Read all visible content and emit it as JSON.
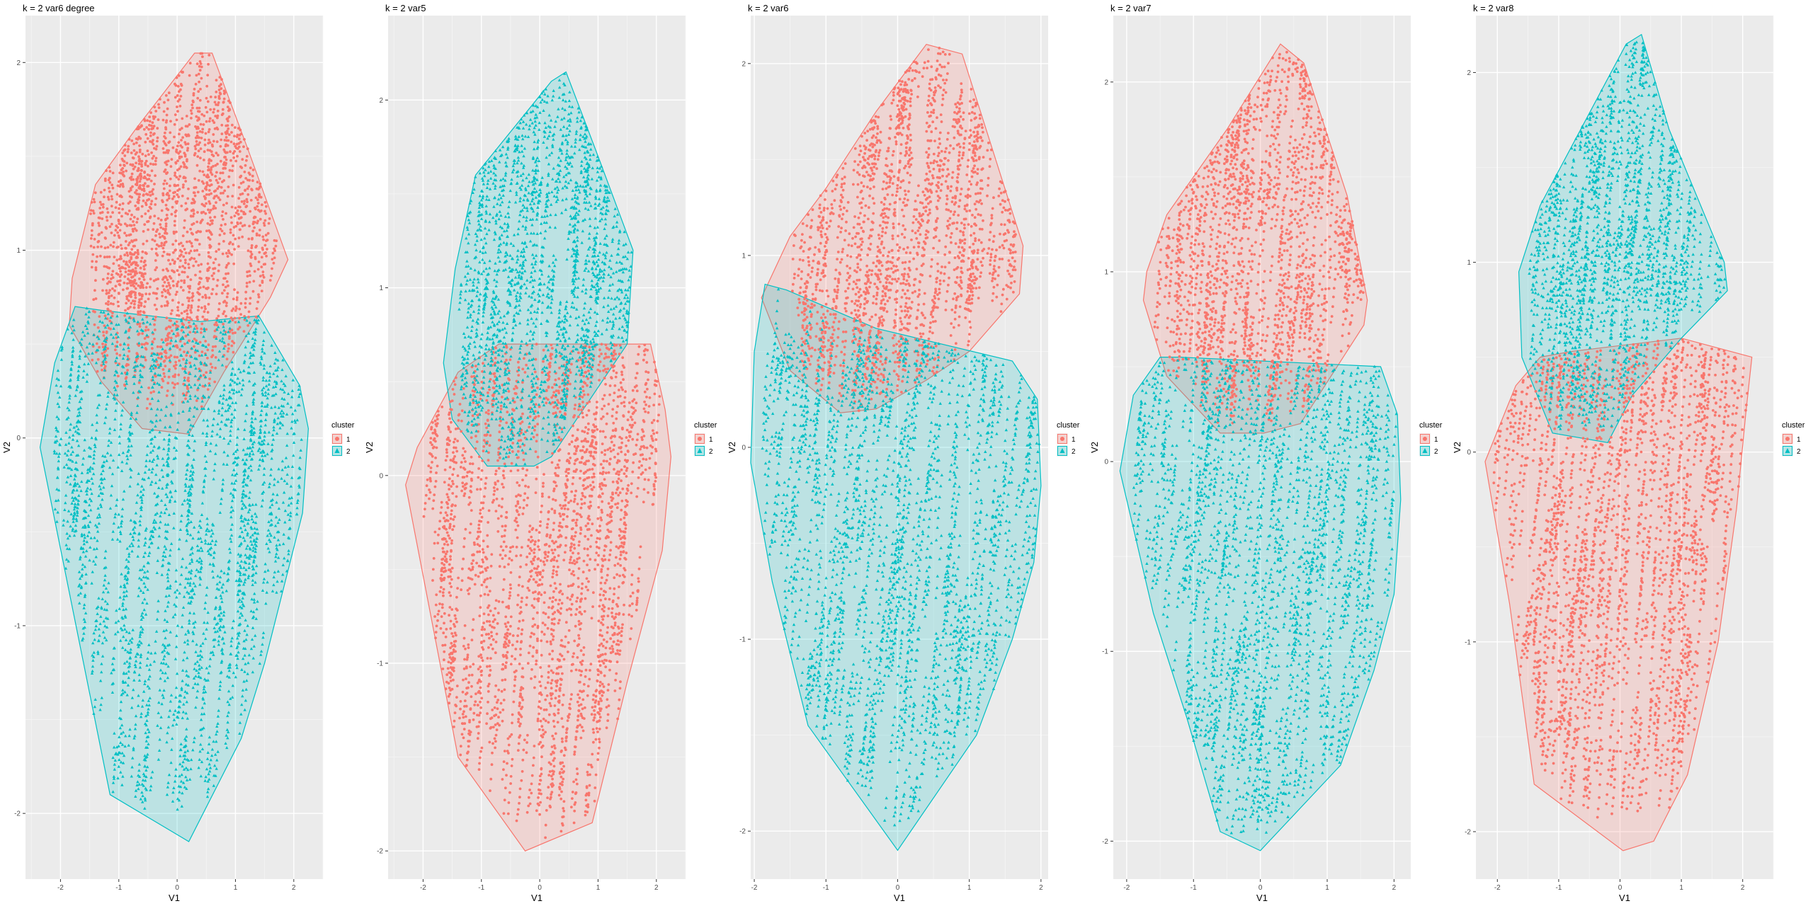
{
  "figure": {
    "layout": "5 panels side by side",
    "legend_title": "cluster",
    "legend_labels": [
      "1",
      "2"
    ],
    "colors": {
      "cluster1": "#F8766D",
      "cluster2": "#00BFC4",
      "panel_bg": "#EBEBEB",
      "grid": "#FFFFFF"
    }
  },
  "chart_data": [
    {
      "type": "scatter",
      "title": "k = 2 var6 degree",
      "xlabel": "V1",
      "ylabel": "V2",
      "xlim": [
        -2.6,
        2.5
      ],
      "ylim": [
        -2.35,
        2.25
      ],
      "xticks": [
        -2,
        -1,
        0,
        1,
        2
      ],
      "yticks": [
        -2,
        -1,
        0,
        1,
        2
      ],
      "legend": "right",
      "hulls": [
        {
          "cluster": "1",
          "points": [
            [
              -1.8,
              0.85
            ],
            [
              -1.4,
              1.35
            ],
            [
              -0.7,
              1.65
            ],
            [
              0.3,
              2.05
            ],
            [
              0.6,
              2.05
            ],
            [
              1.2,
              1.55
            ],
            [
              1.9,
              0.95
            ],
            [
              1.6,
              0.75
            ],
            [
              0.8,
              0.35
            ],
            [
              0.2,
              0.02
            ],
            [
              -0.6,
              0.05
            ],
            [
              -1.3,
              0.3
            ],
            [
              -1.85,
              0.6
            ]
          ]
        },
        {
          "cluster": "2",
          "points": [
            [
              -1.75,
              0.7
            ],
            [
              -1.3,
              0.68
            ],
            [
              0.4,
              0.62
            ],
            [
              1.4,
              0.65
            ],
            [
              2.1,
              0.28
            ],
            [
              2.25,
              0.05
            ],
            [
              2.15,
              -0.4
            ],
            [
              1.5,
              -1.2
            ],
            [
              1.1,
              -1.6
            ],
            [
              0.2,
              -2.15
            ],
            [
              -1.15,
              -1.9
            ],
            [
              -2.35,
              -0.05
            ],
            [
              -2.1,
              0.4
            ]
          ]
        }
      ],
      "clouds": [
        {
          "cluster": "1",
          "n": 430,
          "x": [
            -1.5,
            1.8
          ],
          "y": [
            0.15,
            1.95
          ]
        },
        {
          "cluster": "2",
          "n": 560,
          "x": [
            -2.1,
            2.1
          ],
          "y": [
            -2.0,
            0.65
          ]
        }
      ]
    },
    {
      "type": "scatter",
      "title": "k = 2 var5",
      "xlabel": "V1",
      "ylabel": "V2",
      "xlim": [
        -2.6,
        2.5
      ],
      "ylim": [
        -2.15,
        2.45
      ],
      "xticks": [
        -2,
        -1,
        0,
        1,
        2
      ],
      "yticks": [
        -2,
        -1,
        0,
        1,
        2
      ],
      "legend": "right",
      "hulls": [
        {
          "cluster": "1",
          "points": [
            [
              -1.4,
              0.55
            ],
            [
              -0.7,
              0.7
            ],
            [
              1.9,
              0.7
            ],
            [
              2.15,
              0.35
            ],
            [
              2.25,
              0.1
            ],
            [
              2.1,
              -0.4
            ],
            [
              1.5,
              -1.1
            ],
            [
              0.9,
              -1.85
            ],
            [
              -0.25,
              -2.0
            ],
            [
              -1.4,
              -1.5
            ],
            [
              -2.3,
              -0.05
            ],
            [
              -2.1,
              0.15
            ]
          ]
        },
        {
          "cluster": "2",
          "points": [
            [
              -1.45,
              1.1
            ],
            [
              -1.1,
              1.6
            ],
            [
              0.2,
              2.1
            ],
            [
              0.45,
              2.15
            ],
            [
              1.0,
              1.7
            ],
            [
              1.6,
              1.2
            ],
            [
              1.5,
              0.7
            ],
            [
              0.2,
              0.1
            ],
            [
              -0.1,
              0.05
            ],
            [
              -0.9,
              0.05
            ],
            [
              -1.5,
              0.3
            ],
            [
              -1.65,
              0.6
            ]
          ]
        }
      ],
      "clouds": [
        {
          "cluster": "1",
          "n": 560,
          "x": [
            -2.1,
            2.0
          ],
          "y": [
            -1.95,
            0.65
          ]
        },
        {
          "cluster": "2",
          "n": 430,
          "x": [
            -1.4,
            1.5
          ],
          "y": [
            0.05,
            2.1
          ]
        }
      ]
    },
    {
      "type": "scatter",
      "title": "k = 2 var6",
      "xlabel": "V1",
      "ylabel": "V2",
      "xlim": [
        -2.05,
        2.1
      ],
      "ylim": [
        -2.25,
        2.25
      ],
      "xticks": [
        -2,
        -1,
        0,
        1,
        2
      ],
      "yticks": [
        -2,
        -1,
        0,
        1,
        2
      ],
      "legend": "right",
      "hulls": [
        {
          "cluster": "1",
          "points": [
            [
              -1.9,
              0.78
            ],
            [
              -1.5,
              1.1
            ],
            [
              -1.0,
              1.35
            ],
            [
              -0.3,
              1.75
            ],
            [
              0.4,
              2.1
            ],
            [
              0.9,
              2.05
            ],
            [
              1.75,
              1.05
            ],
            [
              1.7,
              0.8
            ],
            [
              1.0,
              0.5
            ],
            [
              0.4,
              0.35
            ],
            [
              -0.3,
              0.2
            ],
            [
              -0.8,
              0.18
            ],
            [
              -1.5,
              0.4
            ]
          ]
        },
        {
          "cluster": "2",
          "points": [
            [
              -1.85,
              0.85
            ],
            [
              -1.55,
              0.82
            ],
            [
              -0.3,
              0.62
            ],
            [
              1.6,
              0.45
            ],
            [
              1.95,
              0.25
            ],
            [
              2.0,
              -0.2
            ],
            [
              1.9,
              -0.6
            ],
            [
              1.6,
              -1.0
            ],
            [
              1.1,
              -1.5
            ],
            [
              0.0,
              -2.1
            ],
            [
              -1.25,
              -1.45
            ],
            [
              -1.75,
              -0.7
            ],
            [
              -2.05,
              -0.08
            ],
            [
              -2.0,
              0.5
            ]
          ]
        }
      ],
      "clouds": [
        {
          "cluster": "1",
          "n": 430,
          "x": [
            -1.5,
            1.7
          ],
          "y": [
            0.2,
            2.0
          ]
        },
        {
          "cluster": "2",
          "n": 560,
          "x": [
            -1.9,
            1.95
          ],
          "y": [
            -2.0,
            0.5
          ]
        }
      ]
    },
    {
      "type": "scatter",
      "title": "k = 2 var7",
      "xlabel": "V1",
      "ylabel": "V2",
      "xlim": [
        -2.2,
        2.25
      ],
      "ylim": [
        -2.2,
        2.35
      ],
      "xticks": [
        -2,
        -1,
        0,
        1,
        2
      ],
      "yticks": [
        -2,
        -1,
        0,
        1,
        2
      ],
      "legend": "right",
      "hulls": [
        {
          "cluster": "1",
          "points": [
            [
              -1.7,
              1.0
            ],
            [
              -1.4,
              1.3
            ],
            [
              -0.5,
              1.75
            ],
            [
              0.3,
              2.2
            ],
            [
              0.65,
              2.1
            ],
            [
              1.3,
              1.4
            ],
            [
              1.6,
              0.85
            ],
            [
              1.55,
              0.72
            ],
            [
              0.6,
              0.2
            ],
            [
              0.05,
              0.15
            ],
            [
              -0.6,
              0.15
            ],
            [
              -1.4,
              0.45
            ],
            [
              -1.75,
              0.85
            ]
          ]
        },
        {
          "cluster": "2",
          "points": [
            [
              -1.5,
              0.55
            ],
            [
              -1.2,
              0.55
            ],
            [
              1.8,
              0.5
            ],
            [
              2.05,
              0.25
            ],
            [
              2.1,
              -0.2
            ],
            [
              2.0,
              -0.7
            ],
            [
              1.7,
              -1.1
            ],
            [
              1.2,
              -1.6
            ],
            [
              0.0,
              -2.05
            ],
            [
              -0.6,
              -1.95
            ],
            [
              -1.1,
              -1.35
            ],
            [
              -1.6,
              -0.8
            ],
            [
              -2.1,
              -0.05
            ],
            [
              -1.9,
              0.35
            ]
          ]
        }
      ],
      "clouds": [
        {
          "cluster": "1",
          "n": 430,
          "x": [
            -1.6,
            1.55
          ],
          "y": [
            0.2,
            2.1
          ]
        },
        {
          "cluster": "2",
          "n": 560,
          "x": [
            -1.9,
            2.0
          ],
          "y": [
            -2.0,
            0.5
          ]
        }
      ]
    },
    {
      "type": "scatter",
      "title": "k = 2 var8",
      "xlabel": "V1",
      "ylabel": "V2",
      "xlim": [
        -2.35,
        2.5
      ],
      "ylim": [
        -2.25,
        2.3
      ],
      "xticks": [
        -2,
        -1,
        0,
        1,
        2
      ],
      "yticks": [
        -2,
        -1,
        0,
        1,
        2
      ],
      "legend": "right",
      "hulls": [
        {
          "cluster": "1",
          "points": [
            [
              -1.3,
              0.5
            ],
            [
              -0.8,
              0.53
            ],
            [
              1.0,
              0.6
            ],
            [
              2.15,
              0.5
            ],
            [
              2.05,
              0.2
            ],
            [
              1.9,
              -0.3
            ],
            [
              1.6,
              -1.0
            ],
            [
              1.1,
              -1.7
            ],
            [
              0.55,
              -2.05
            ],
            [
              0.05,
              -2.1
            ],
            [
              -1.4,
              -1.75
            ],
            [
              -1.8,
              -0.8
            ],
            [
              -2.2,
              -0.05
            ],
            [
              -1.7,
              0.35
            ]
          ]
        },
        {
          "cluster": "2",
          "points": [
            [
              -1.65,
              0.95
            ],
            [
              -1.3,
              1.3
            ],
            [
              0.1,
              2.15
            ],
            [
              0.35,
              2.2
            ],
            [
              0.8,
              1.7
            ],
            [
              1.7,
              1.0
            ],
            [
              1.75,
              0.85
            ],
            [
              1.0,
              0.6
            ],
            [
              0.2,
              0.3
            ],
            [
              -0.2,
              0.05
            ],
            [
              -1.1,
              0.1
            ],
            [
              -1.6,
              0.5
            ]
          ]
        }
      ],
      "clouds": [
        {
          "cluster": "1",
          "n": 560,
          "x": [
            -2.1,
            2.05
          ],
          "y": [
            -1.95,
            0.55
          ]
        },
        {
          "cluster": "2",
          "n": 430,
          "x": [
            -1.5,
            1.7
          ],
          "y": [
            0.1,
            2.1
          ]
        }
      ]
    }
  ]
}
